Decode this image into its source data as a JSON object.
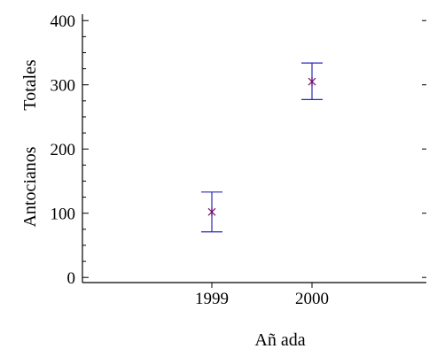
{
  "chart_data": {
    "type": "errorbar",
    "categories": [
      "1999",
      "2000"
    ],
    "series": [
      {
        "points": [
          {
            "x": "1999",
            "mean": 102,
            "low": 71,
            "high": 133
          },
          {
            "x": "2000",
            "mean": 305,
            "low": 277,
            "high": 334
          }
        ]
      }
    ],
    "xlabel": "Añ ada",
    "ylabel_lines": [
      "Antocianos",
      "Totales"
    ],
    "yticks": [
      0,
      100,
      200,
      300,
      400
    ],
    "ylim": [
      -8,
      410
    ],
    "grid": false,
    "colors": {
      "errorbar": "#2a2ab8",
      "marker": "#6a0a6a",
      "axis": "#000000"
    }
  }
}
